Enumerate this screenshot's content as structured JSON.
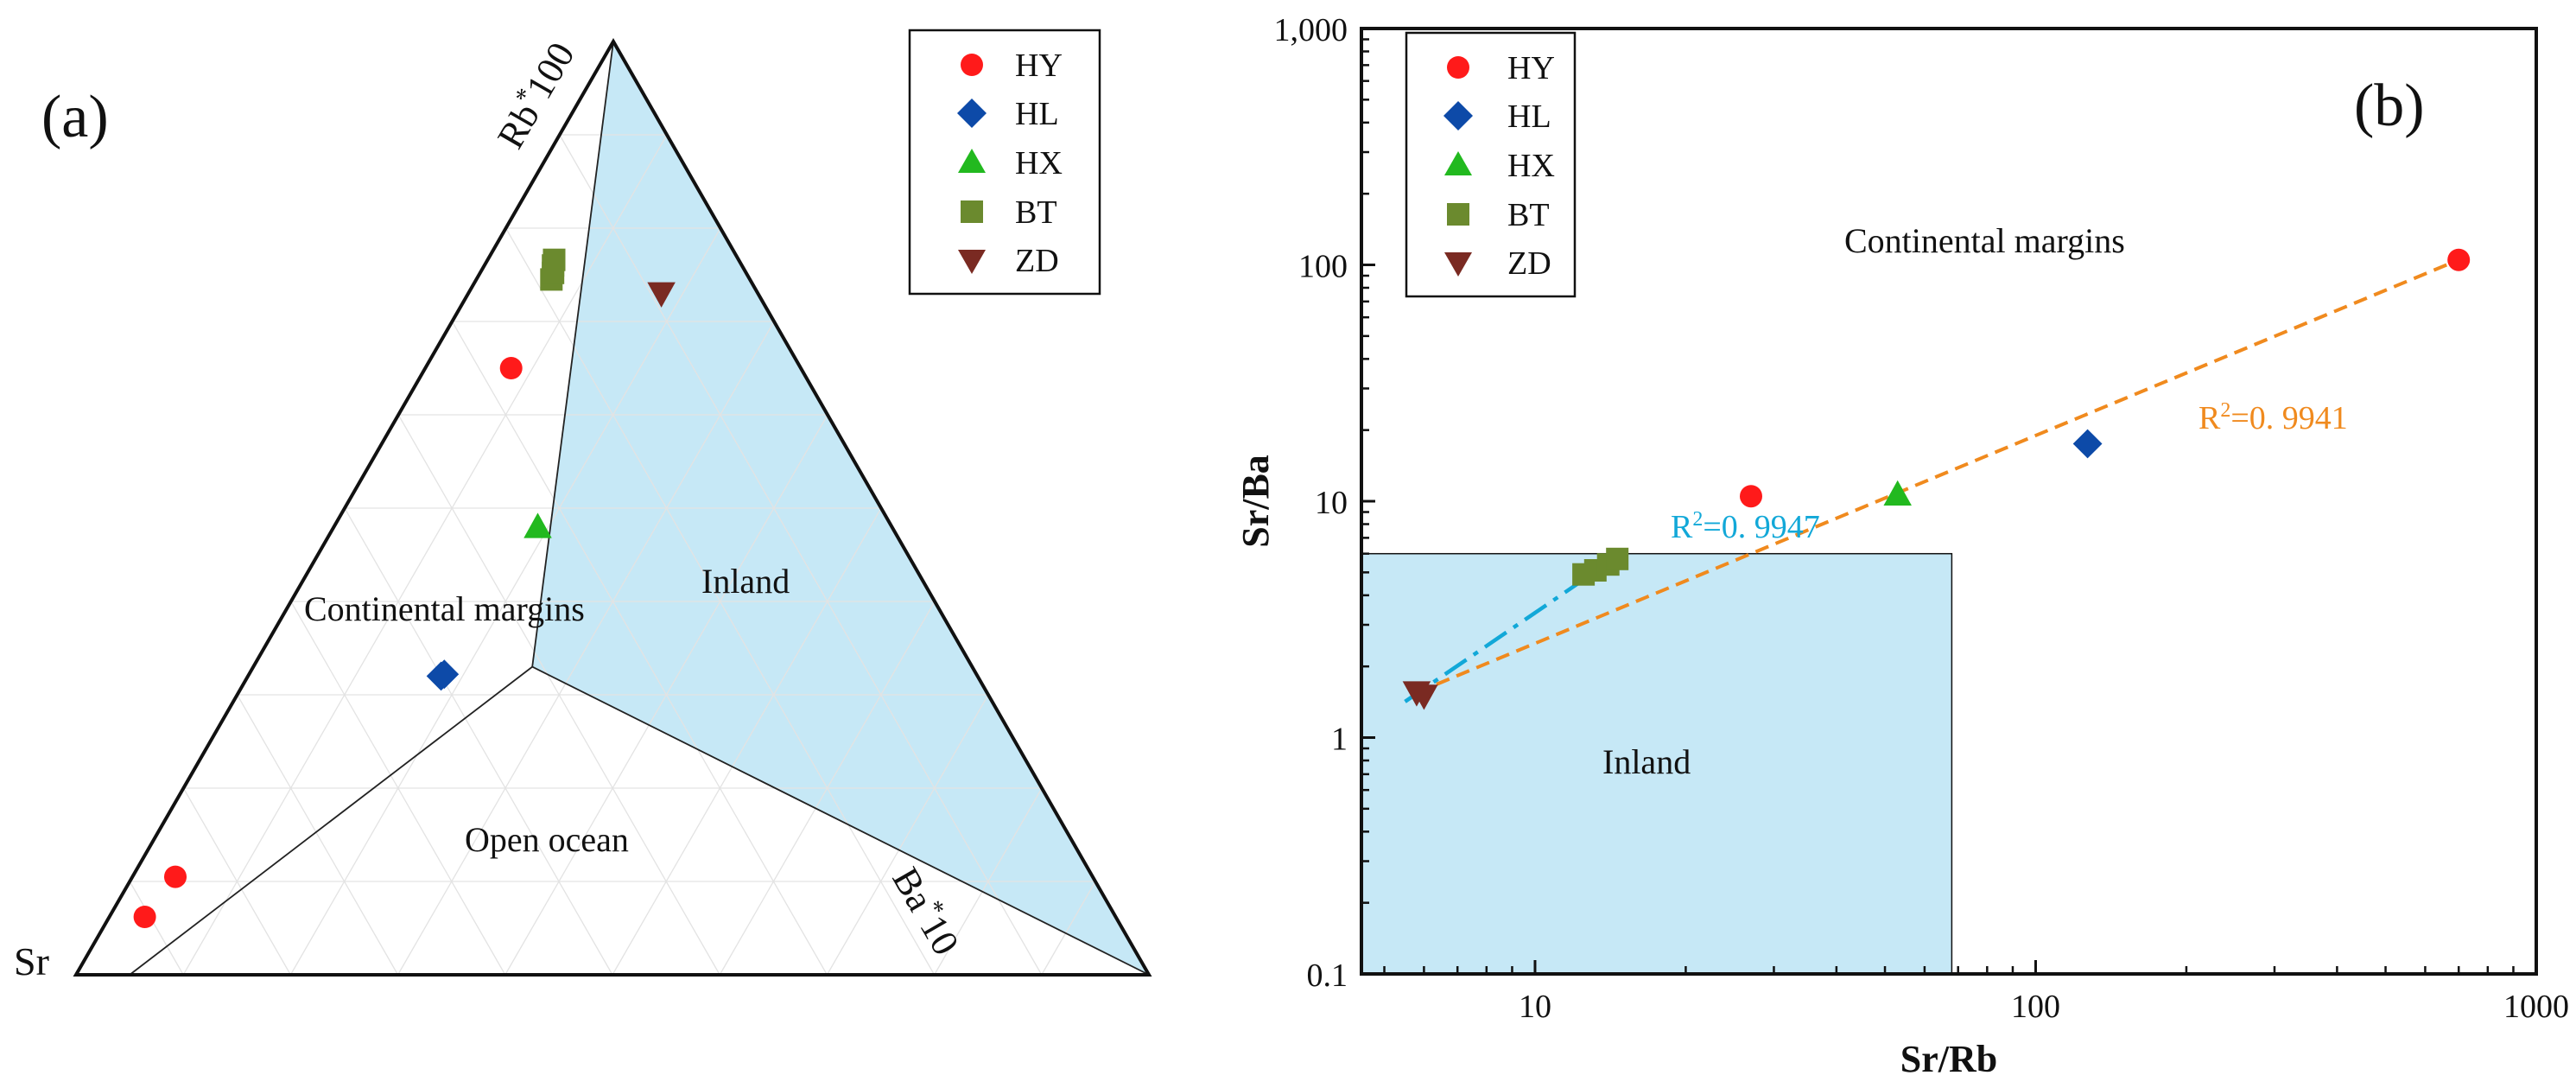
{
  "colors": {
    "inland_fill": "#c6e8f6",
    "HY": "#ff1a1a",
    "HL": "#0d4aa8",
    "HX": "#22b91f",
    "BT": "#6b8a2e",
    "ZD": "#7a2a22",
    "fit_bt": "#12a8d8",
    "fit_all": "#f08a1e"
  },
  "legend": [
    {
      "key": "HY",
      "label": "HY",
      "marker": "circle"
    },
    {
      "key": "HL",
      "label": "HL",
      "marker": "diamond"
    },
    {
      "key": "HX",
      "label": "HX",
      "marker": "triangle-up"
    },
    {
      "key": "BT",
      "label": "BT",
      "marker": "square"
    },
    {
      "key": "ZD",
      "label": "ZD",
      "marker": "triangle-down"
    }
  ],
  "chart_data": [
    {
      "panel": "(a)",
      "type": "scatter",
      "subtype": "ternary",
      "vertex_labels": {
        "top": "Rb*100",
        "left": "Sr",
        "right": "Ba*10"
      },
      "vertex_label_parts": {
        "top": {
          "base": "Rb",
          "star": "*",
          "mult": "100"
        },
        "right": {
          "base": "Ba",
          "star": "*",
          "mult": "10"
        }
      },
      "region_labels": {
        "continental": "Continental margins",
        "inland": "Inland",
        "open_ocean": "Open ocean"
      },
      "region_boundaries": {
        "junction": {
          "sr": 0.41,
          "rb": 0.33,
          "ba": 0.26
        },
        "to_top": {
          "sr": 0,
          "rb": 1,
          "ba": 0
        },
        "to_right": {
          "sr": 0,
          "rb": 0,
          "ba": 1
        },
        "to_left_edge": {
          "sr": 0.95,
          "rb": 0,
          "ba": 0.05
        }
      },
      "series": [
        {
          "name": "HY",
          "points": [
            {
              "sr": 0.27,
              "rb": 0.65,
              "ba": 0.08
            },
            {
              "sr": 0.855,
              "rb": 0.105,
              "ba": 0.04
            },
            {
              "sr": 0.905,
              "rb": 0.062,
              "ba": 0.033
            }
          ]
        },
        {
          "name": "HL",
          "points": [
            {
              "sr": 0.5,
              "rb": 0.32,
              "ba": 0.18
            },
            {
              "sr": 0.496,
              "rb": 0.322,
              "ba": 0.182
            }
          ]
        },
        {
          "name": "HX",
          "points": [
            {
              "sr": 0.33,
              "rb": 0.48,
              "ba": 0.19
            }
          ]
        },
        {
          "name": "BT",
          "points": [
            {
              "sr": 0.185,
              "rb": 0.745,
              "ba": 0.07
            },
            {
              "sr": 0.18,
              "rb": 0.752,
              "ba": 0.068
            },
            {
              "sr": 0.176,
              "rb": 0.76,
              "ba": 0.064
            },
            {
              "sr": 0.172,
              "rb": 0.766,
              "ba": 0.062
            }
          ]
        },
        {
          "name": "ZD",
          "points": [
            {
              "sr": 0.09,
              "rb": 0.73,
              "ba": 0.18
            }
          ]
        }
      ]
    },
    {
      "panel": "(b)",
      "type": "scatter",
      "xscale": "log",
      "yscale": "log",
      "xlabel": "Sr/Rb",
      "ylabel": "Sr/Ba",
      "xlim": [
        4.5,
        1000
      ],
      "ylim": [
        0.1,
        1000
      ],
      "x_ticks": [
        10,
        100,
        1000
      ],
      "x_tick_labels": [
        "10",
        "100",
        "1000"
      ],
      "y_ticks": [
        0.1,
        1,
        10,
        100,
        1000
      ],
      "y_tick_labels": [
        "0.1",
        "1",
        "10",
        "100",
        "1,000"
      ],
      "inland_region": {
        "x_max": 68,
        "y_max": 6
      },
      "region_labels": {
        "continental": "Continental margins",
        "inland": "Inland"
      },
      "series": [
        {
          "name": "HY",
          "x": [
            27,
            700
          ],
          "y": [
            10.5,
            105
          ]
        },
        {
          "name": "HL",
          "x": [
            127
          ],
          "y": [
            17.5
          ]
        },
        {
          "name": "HX",
          "x": [
            53
          ],
          "y": [
            10.7
          ]
        },
        {
          "name": "BT",
          "x": [
            12.5,
            13.2,
            14,
            14.6
          ],
          "y": [
            4.9,
            5.1,
            5.4,
            5.7
          ]
        },
        {
          "name": "ZD",
          "x": [
            5.8,
            6.0
          ],
          "y": [
            1.55,
            1.5
          ]
        }
      ],
      "fits": [
        {
          "name": "BT-ZD fit",
          "label": "R²=0. 9947",
          "label_parts": {
            "r": "R",
            "sup": "2",
            "rest": "=0. 9947"
          },
          "x": [
            5.5,
            14.2
          ],
          "y": [
            1.42,
            5.6
          ]
        },
        {
          "name": "all samples fit",
          "label": "R²=0. 9941",
          "label_parts": {
            "r": "R",
            "sup": "2",
            "rest": "=0. 9941"
          },
          "x": [
            5.8,
            700
          ],
          "y": [
            1.55,
            105
          ]
        }
      ]
    }
  ]
}
